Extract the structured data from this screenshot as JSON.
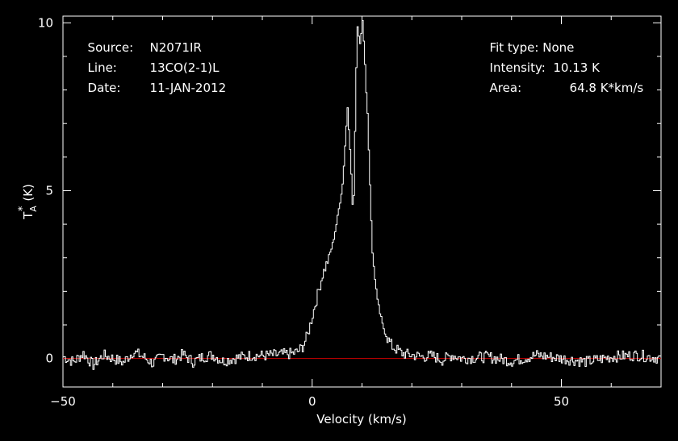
{
  "header": {
    "source_label": "Source:",
    "source_value": "N2071IR",
    "line_label": "Line:",
    "line_value": "13CO(2-1)L",
    "date_label": "Date:",
    "date_value": "11-JAN-2012",
    "fit_label": "Fit type:",
    "fit_value": "None",
    "intensity_label": "Intensity:",
    "intensity_value": "10.13 K",
    "area_label": "Area:",
    "area_value": "64.8 K*km/s"
  },
  "chart_data": {
    "type": "line",
    "title": "",
    "xlabel": "Velocity (km/s)",
    "ylabel_main": "T",
    "ylabel_sup": "*",
    "ylabel_sub": "A",
    "ylabel_unit": "(K)",
    "xlim": [
      -50,
      70
    ],
    "ylim": [
      -0.85,
      10.2
    ],
    "xticks": [
      -50,
      0,
      50
    ],
    "yticks": [
      0,
      5,
      10
    ],
    "grid": false,
    "colors": {
      "axes": "#ffffff",
      "spectrum": "#ffffff",
      "baseline": "#d00000"
    },
    "series": [
      {
        "x": [
          -50,
          -48,
          -46,
          -44,
          -42,
          -40,
          -38,
          -36,
          -34,
          -32,
          -30,
          -28,
          -26,
          -24,
          -22,
          -20,
          -18,
          -16,
          -14,
          -12,
          -10,
          -8,
          -6,
          -4,
          -3,
          -2,
          -1,
          0,
          1,
          2,
          3,
          4,
          5,
          6,
          7,
          7.5,
          8,
          8.3,
          8.7,
          9,
          9.5,
          10,
          10.5,
          11,
          11.5,
          12,
          13,
          14,
          15,
          16,
          17,
          18,
          19,
          20,
          22,
          24,
          26,
          28,
          30,
          35,
          40,
          45,
          50,
          55,
          60,
          65,
          70
        ],
        "y": [
          0.05,
          -0.1,
          0.15,
          -0.2,
          0.1,
          0.0,
          -0.12,
          0.2,
          0.05,
          -0.15,
          0.1,
          -0.05,
          0.12,
          -0.1,
          0.05,
          0.1,
          -0.08,
          0.0,
          0.05,
          0.1,
          0.08,
          0.1,
          0.12,
          0.15,
          0.2,
          0.35,
          0.7,
          1.3,
          1.9,
          2.5,
          2.9,
          3.4,
          4.2,
          5.2,
          7.5,
          6.3,
          4.6,
          4.9,
          8.5,
          9.9,
          9.4,
          10.13,
          8.7,
          7.3,
          5.2,
          3.1,
          1.7,
          1.0,
          0.6,
          0.35,
          0.25,
          0.15,
          0.12,
          0.1,
          0.05,
          0.08,
          -0.05,
          0.1,
          0.0,
          0.05,
          -0.08,
          0.1,
          0.0,
          -0.1,
          0.05,
          0.1,
          0.0
        ]
      }
    ],
    "baseline_y": 0
  }
}
